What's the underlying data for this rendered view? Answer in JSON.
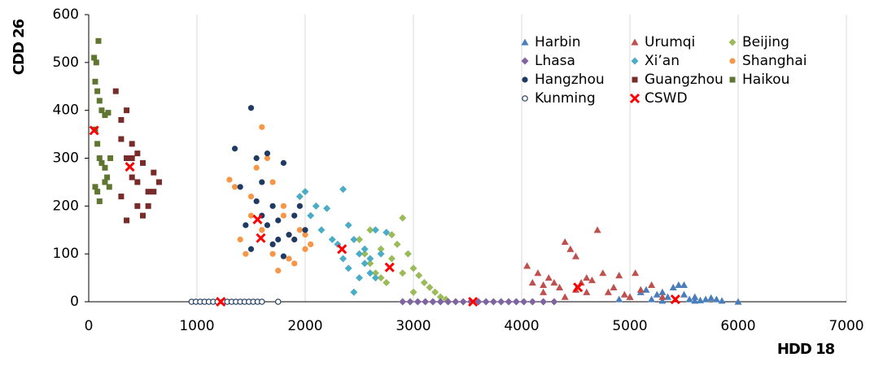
{
  "chart_data": {
    "type": "scatter",
    "x_label": "HDD 18",
    "y_label": "CDD 26",
    "xlim": [
      0,
      7000
    ],
    "ylim": [
      0,
      600
    ],
    "xticks": [
      0,
      1000,
      2000,
      3000,
      4000,
      5000,
      6000,
      7000
    ],
    "yticks": [
      0,
      100,
      200,
      300,
      400,
      500,
      600
    ],
    "grid": "x",
    "legend": "top-right",
    "series": [
      {
        "name": "Harbin",
        "color": "#4a7ebb",
        "marker": "triangle",
        "x": [
          4900,
          5000,
          5100,
          5150,
          5200,
          5250,
          5300,
          5350,
          5400,
          5450,
          5500,
          5550,
          5600,
          5650,
          5700,
          5750,
          5800,
          5850,
          6000,
          5300,
          5500,
          5600
        ],
        "values": [
          5,
          10,
          20,
          25,
          5,
          15,
          2,
          10,
          30,
          35,
          35,
          5,
          10,
          3,
          5,
          8,
          5,
          2,
          0,
          20,
          15,
          2
        ]
      },
      {
        "name": "Urumqi",
        "color": "#c0504d",
        "marker": "triangle",
        "x": [
          4050,
          4100,
          4150,
          4200,
          4250,
          4300,
          4350,
          4400,
          4450,
          4500,
          4550,
          4600,
          4650,
          4700,
          4750,
          4800,
          4850,
          4900,
          4950,
          5000,
          5050,
          5100,
          5200,
          5300,
          4400,
          4600,
          4200,
          4500
        ],
        "values": [
          75,
          40,
          60,
          20,
          50,
          40,
          30,
          125,
          110,
          95,
          40,
          20,
          45,
          150,
          60,
          20,
          30,
          55,
          15,
          10,
          60,
          25,
          35,
          10,
          10,
          50,
          35,
          25
        ]
      },
      {
        "name": "Beijing",
        "color": "#9bbb59",
        "marker": "diamond",
        "x": [
          2500,
          2550,
          2600,
          2650,
          2700,
          2750,
          2800,
          2850,
          2900,
          2950,
          3000,
          3050,
          3100,
          3150,
          3200,
          3250,
          3300,
          2700,
          2800,
          2900,
          3000,
          2600
        ],
        "values": [
          130,
          100,
          80,
          60,
          110,
          40,
          90,
          120,
          175,
          100,
          70,
          55,
          40,
          30,
          20,
          10,
          5,
          50,
          140,
          60,
          20,
          150
        ]
      },
      {
        "name": "Lhasa",
        "color": "#8064a2",
        "marker": "diamond",
        "x": [
          2900,
          2970,
          3040,
          3110,
          3180,
          3250,
          3320,
          3390,
          3460,
          3530,
          3600,
          3670,
          3740,
          3810,
          3880,
          3950,
          4020,
          4100,
          4200,
          4300
        ],
        "values": [
          0,
          0,
          0,
          0,
          0,
          0,
          0,
          0,
          0,
          0,
          0,
          0,
          0,
          0,
          0,
          0,
          0,
          0,
          0,
          0
        ]
      },
      {
        "name": "Xi’an",
        "color": "#4bacc6",
        "marker": "diamond",
        "x": [
          1950,
          2000,
          2050,
          2100,
          2150,
          2200,
          2250,
          2300,
          2350,
          2400,
          2450,
          2500,
          2550,
          2600,
          2650,
          2700,
          2750,
          2450,
          2500,
          2550,
          2400,
          2600,
          2350,
          2650
        ],
        "values": [
          220,
          230,
          180,
          200,
          150,
          195,
          130,
          120,
          235,
          160,
          130,
          100,
          110,
          90,
          150,
          100,
          145,
          20,
          50,
          80,
          70,
          60,
          90,
          50
        ]
      },
      {
        "name": "Shanghai",
        "color": "#f79646",
        "marker": "circle",
        "x": [
          1300,
          1350,
          1400,
          1450,
          1500,
          1550,
          1600,
          1650,
          1700,
          1750,
          1800,
          1850,
          1900,
          1950,
          2000,
          2050,
          1600,
          1700,
          1800,
          1900,
          1500,
          2000
        ],
        "values": [
          255,
          240,
          130,
          100,
          220,
          280,
          365,
          300,
          250,
          65,
          180,
          90,
          130,
          150,
          110,
          120,
          150,
          100,
          200,
          80,
          180,
          140
        ]
      },
      {
        "name": "Hangzhou",
        "color": "#1f3b63",
        "marker": "circle",
        "x": [
          1350,
          1400,
          1450,
          1500,
          1550,
          1600,
          1650,
          1700,
          1750,
          1800,
          1850,
          1900,
          1950,
          2000,
          1500,
          1600,
          1700,
          1800,
          1900,
          1550,
          1650,
          1750
        ],
        "values": [
          320,
          240,
          160,
          405,
          300,
          250,
          310,
          200,
          170,
          290,
          140,
          130,
          200,
          150,
          110,
          180,
          120,
          95,
          180,
          210,
          160,
          130
        ]
      },
      {
        "name": "Guangzhou",
        "color": "#772c2a",
        "marker": "square",
        "x": [
          250,
          300,
          350,
          400,
          450,
          500,
          550,
          600,
          650,
          300,
          350,
          400,
          450,
          500,
          350,
          400,
          550,
          300,
          600,
          450
        ],
        "values": [
          440,
          380,
          300,
          330,
          250,
          290,
          230,
          270,
          250,
          220,
          170,
          260,
          200,
          180,
          400,
          300,
          200,
          340,
          230,
          310
        ]
      },
      {
        "name": "Haikou",
        "color": "#5f7530",
        "marker": "square",
        "x": [
          50,
          70,
          90,
          60,
          80,
          100,
          120,
          150,
          180,
          60,
          80,
          100,
          120,
          150,
          170,
          60,
          80,
          100,
          150,
          200,
          190
        ],
        "values": [
          510,
          500,
          545,
          460,
          440,
          420,
          400,
          390,
          395,
          360,
          330,
          300,
          290,
          280,
          260,
          240,
          230,
          210,
          250,
          300,
          240
        ]
      },
      {
        "name": "Kunming",
        "color": "#1f3b63",
        "marker": "open-circle",
        "x": [
          950,
          990,
          1030,
          1070,
          1110,
          1150,
          1190,
          1240,
          1280,
          1320,
          1360,
          1400,
          1440,
          1480,
          1520,
          1560,
          1600,
          1750
        ],
        "values": [
          0,
          0,
          0,
          0,
          0,
          0,
          0,
          0,
          0,
          0,
          0,
          0,
          0,
          0,
          0,
          0,
          0,
          0
        ]
      },
      {
        "name": "CSWD",
        "color": "#ff0000",
        "marker": "x",
        "x": [
          50,
          380,
          1220,
          1560,
          1590,
          2340,
          2780,
          3550,
          4520,
          5420
        ],
        "values": [
          358,
          282,
          0,
          172,
          133,
          110,
          72,
          0,
          30,
          5
        ]
      }
    ]
  }
}
